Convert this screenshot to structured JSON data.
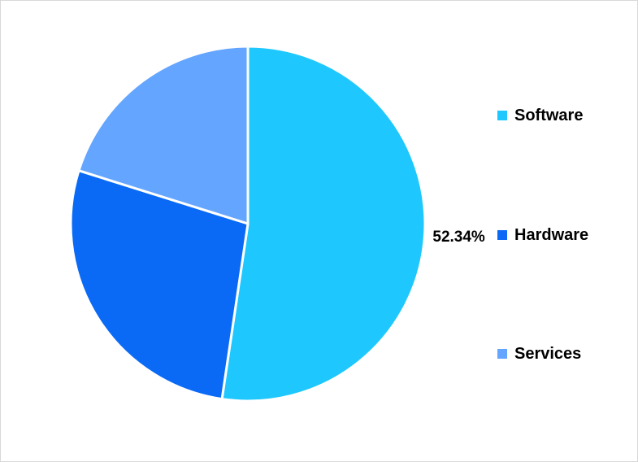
{
  "chart_data": {
    "type": "pie",
    "title": "",
    "categories": [
      "Software",
      "Hardware",
      "Services"
    ],
    "values": [
      52.34,
      27.5,
      20.16
    ],
    "colors": [
      "#1ec8ff",
      "#0a6af5",
      "#63a5ff"
    ],
    "data_labels": [
      "52.34%",
      "",
      ""
    ],
    "legend_position": "right"
  }
}
